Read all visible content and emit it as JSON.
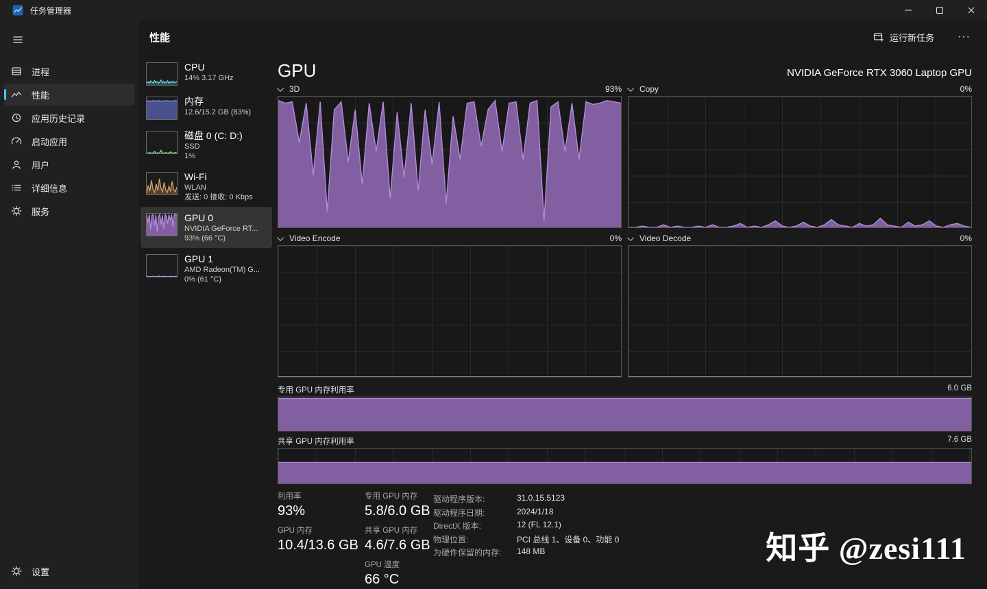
{
  "colors": {
    "accent": "#4cc2ff",
    "gpu_purple_fill": "#8c66ac",
    "gpu_purple_line": "#b28bd8"
  },
  "titlebar": {
    "title": "任务管理器"
  },
  "icons": {
    "app": "task-manager-app-icon",
    "minimize": "minimize-icon",
    "maximize": "maximize-icon",
    "close": "close-icon",
    "menu": "hamburger-menu-icon",
    "chevron": "chevron-down-icon"
  },
  "nav": {
    "items": [
      {
        "label": "进程",
        "selected": false
      },
      {
        "label": "性能",
        "selected": true
      },
      {
        "label": "应用历史记录",
        "selected": false
      },
      {
        "label": "启动应用",
        "selected": false
      },
      {
        "label": "用户",
        "selected": false
      },
      {
        "label": "详细信息",
        "selected": false
      },
      {
        "label": "服务",
        "selected": false
      }
    ],
    "settings": "设置"
  },
  "header": {
    "title": "性能",
    "run_new_task": "运行新任务",
    "more": "···"
  },
  "perf_list": [
    {
      "title": "CPU",
      "line1": "14% 3.17 GHz"
    },
    {
      "title": "内存",
      "line1": "12.6/15.2 GB (83%)"
    },
    {
      "title": "磁盘 0 (C: D:)",
      "line1": "SSD",
      "line2": "1%"
    },
    {
      "title": "Wi-Fi",
      "line1": "WLAN",
      "line2": "发送: 0 接收: 0 Kbps"
    },
    {
      "title": "GPU 0",
      "line1": "NVIDIA GeForce RT...",
      "line2": "93% (66 °C)",
      "selected": true
    },
    {
      "title": "GPU 1",
      "line1": "AMD Radeon(TM) G...",
      "line2": "0% (61 °C)"
    }
  ],
  "gpu": {
    "title": "GPU",
    "name": "NVIDIA GeForce RTX 3060 Laptop GPU",
    "charts": {
      "c3d": {
        "label": "3D",
        "value": "93%"
      },
      "copy": {
        "label": "Copy",
        "value": "0%"
      },
      "encode": {
        "label": "Video Encode",
        "value": "0%"
      },
      "decode": {
        "label": "Video Decode",
        "value": "0%"
      },
      "dedicated": {
        "label": "专用 GPU 内存利用率",
        "max": "6.0 GB"
      },
      "shared": {
        "label": "共享 GPU 内存利用率",
        "max": "7.6 GB"
      }
    },
    "stats": [
      {
        "label": "利用率",
        "value": "93%"
      },
      {
        "label": "GPU 内存",
        "value": "10.4/13.6 GB"
      },
      {
        "label": "专用 GPU 内存",
        "value": "5.8/6.0 GB"
      },
      {
        "label": "共享 GPU 内存",
        "value": "4.6/7.6 GB"
      },
      {
        "label": "GPU 温度",
        "value": "66 °C"
      }
    ],
    "details": [
      {
        "label": "驱动程序版本:",
        "value": "31.0.15.5123"
      },
      {
        "label": "驱动程序日期:",
        "value": "2024/1/18"
      },
      {
        "label": "DirectX 版本:",
        "value": "12 (FL 12.1)"
      },
      {
        "label": "物理位置:",
        "value": "PCI 总线 1、设备 0、功能 0"
      },
      {
        "label": "为硬件保留的内存:",
        "value": "148 MB"
      }
    ]
  },
  "watermark": "知乎 @zesi111",
  "chart_data": [
    {
      "id": "gpu_3d",
      "type": "area",
      "title": "GPU 3D utilization over 60 s",
      "ylabel": "%",
      "ylim": [
        0,
        100
      ],
      "current": 93,
      "values": [
        97,
        95,
        96,
        65,
        95,
        40,
        96,
        12,
        90,
        96,
        50,
        90,
        33,
        95,
        58,
        96,
        22,
        88,
        38,
        95,
        28,
        90,
        48,
        96,
        18,
        85,
        52,
        95,
        96,
        62,
        90,
        97,
        58,
        95,
        96,
        52,
        95,
        97,
        5,
        92,
        96,
        58,
        95,
        52,
        96,
        94,
        95,
        97,
        96,
        95
      ],
      "fill": "rgba(140,102,172,0.92)",
      "stroke": "#b28bd8"
    },
    {
      "id": "gpu_copy",
      "type": "area",
      "title": "GPU Copy utilization over 60 s",
      "ylabel": "%",
      "ylim": [
        0,
        100
      ],
      "current": 0,
      "values": [
        0,
        0,
        1,
        0,
        0,
        2,
        0,
        1,
        0,
        0,
        1,
        0,
        2,
        0,
        0,
        1,
        3,
        0,
        1,
        0,
        2,
        5,
        1,
        0,
        1,
        4,
        1,
        0,
        2,
        6,
        2,
        1,
        0,
        3,
        1,
        2,
        7,
        2,
        1,
        0,
        4,
        1,
        2,
        5,
        1,
        0,
        2,
        3,
        1,
        0
      ],
      "fill": "rgba(140,102,172,0.92)",
      "stroke": "#b28bd8"
    },
    {
      "id": "gpu_encode",
      "type": "area",
      "title": "Video Encode utilization",
      "ylabel": "%",
      "ylim": [
        0,
        100
      ],
      "current": 0,
      "values": [
        0,
        0,
        0,
        0,
        0,
        0,
        0,
        0,
        0,
        0
      ],
      "fill": "rgba(140,102,172,0.92)",
      "stroke": "#b28bd8"
    },
    {
      "id": "gpu_decode",
      "type": "area",
      "title": "Video Decode utilization",
      "ylabel": "%",
      "ylim": [
        0,
        100
      ],
      "current": 0,
      "values": [
        0,
        0,
        0,
        0,
        0,
        0,
        0,
        0,
        0,
        0
      ],
      "fill": "rgba(140,102,172,0.92)",
      "stroke": "#b28bd8"
    },
    {
      "id": "gpu_dedicated_mem",
      "type": "area",
      "title": "Dedicated GPU memory 5.8/6.0 GB",
      "ylabel": "GB",
      "ylim": [
        0,
        100
      ],
      "current": 96.7,
      "values": [
        96.7,
        96.7
      ],
      "fill": "rgba(140,102,172,0.92)",
      "stroke": "#b28bd8"
    },
    {
      "id": "gpu_shared_mem",
      "type": "area",
      "title": "Shared GPU memory 4.6/7.6 GB",
      "ylabel": "GB",
      "ylim": [
        0,
        100
      ],
      "current": 60.5,
      "values": [
        60.5,
        60.5
      ],
      "fill": "rgba(140,102,172,0.92)",
      "stroke": "#b28bd8"
    },
    {
      "id": "cpu_mini",
      "type": "area",
      "title": "CPU 14%",
      "ylim": [
        0,
        100
      ],
      "values": [
        10,
        14,
        8,
        18,
        12,
        9,
        20,
        11,
        15,
        8,
        13,
        22,
        10,
        16,
        9,
        12,
        19,
        8,
        14,
        11,
        17,
        10,
        13,
        15
      ],
      "fill": "rgba(53,120,131,0.55)",
      "stroke": "#6fd0de"
    },
    {
      "id": "mem_mini",
      "type": "area",
      "title": "Memory 83%",
      "ylim": [
        0,
        100
      ],
      "values": [
        83,
        83,
        82,
        84,
        83,
        83,
        84,
        82,
        83,
        83,
        84,
        83,
        82,
        83,
        84,
        83
      ],
      "fill": "rgba(84,94,170,0.8)",
      "stroke": "#8d97e2"
    },
    {
      "id": "disk_mini",
      "type": "area",
      "title": "Disk 1%",
      "ylim": [
        0,
        100
      ],
      "values": [
        2,
        1,
        4,
        1,
        2,
        9,
        1,
        3,
        1,
        14,
        2,
        1,
        5,
        1,
        2,
        7,
        1,
        2,
        4,
        1
      ],
      "fill": "rgba(60,130,70,0.45)",
      "stroke": "#7ed689"
    },
    {
      "id": "wifi_mini",
      "type": "area",
      "title": "Wi-Fi throughput",
      "ylim": [
        0,
        100
      ],
      "values": [
        8,
        42,
        15,
        65,
        22,
        10,
        48,
        18,
        72,
        28,
        12,
        55,
        20,
        9,
        38,
        14,
        60,
        24,
        12,
        34
      ],
      "fill": "rgba(150,100,55,0.5)",
      "stroke": "#c99a6a"
    },
    {
      "id": "gpu0_mini",
      "type": "area",
      "title": "GPU 0 93%",
      "ylim": [
        0,
        100
      ],
      "values": [
        95,
        58,
        96,
        28,
        92,
        96,
        44,
        95,
        18,
        88,
        96,
        50,
        93,
        32,
        96,
        90,
        55,
        95,
        70,
        96,
        40,
        94,
        96,
        92
      ],
      "fill": "rgba(140,102,172,0.92)",
      "stroke": "#b28bd8"
    },
    {
      "id": "gpu1_mini",
      "type": "area",
      "title": "GPU 1 0%",
      "ylim": [
        0,
        100
      ],
      "values": [
        2,
        1,
        1,
        2,
        1,
        1,
        3,
        1,
        1,
        2,
        1,
        1,
        2,
        1,
        1,
        2
      ],
      "fill": "rgba(140,102,172,0.92)",
      "stroke": "#b28bd8"
    }
  ]
}
